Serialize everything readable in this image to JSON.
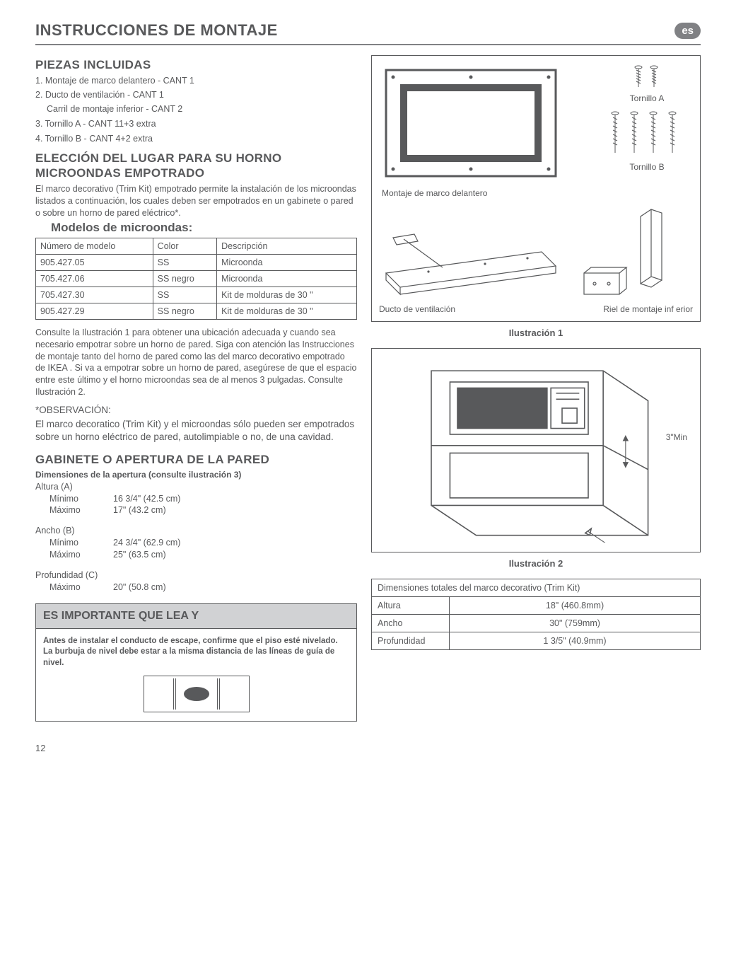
{
  "header": {
    "title": "INSTRUCCIONES DE MONTAJE",
    "lang_badge": "es"
  },
  "piezas": {
    "heading": "PIEZAS INCLUIDAS",
    "items": [
      "1. Montaje de marco delantero - CANT 1",
      "2. Ducto de ventilación - CANT 1",
      "Carril de montaje inferior - CANT 2",
      "3. Tornillo A - CANT 11+3 extra",
      "4. Tornillo B - CANT 4+2 extra"
    ]
  },
  "eleccion": {
    "heading": "ELECCIÓN DEL LUGAR PARA SU HORNO MICROONDAS EMPOTRADO",
    "para": "El marco decorativo (Trim Kit) empotrado permite la instalación de los microondas listados a continuación, los cuales deben ser empotrados en un gabinete o pared o sobre un horno de pared eléctrico*."
  },
  "modelos": {
    "heading": "Modelos de microondas:",
    "columns": [
      "Número de modelo",
      "Color",
      "Descripción"
    ],
    "rows": [
      [
        "905.427.05",
        "SS",
        "Microonda"
      ],
      [
        "705.427.06",
        "SS negro",
        "Microonda"
      ],
      [
        "705.427.30",
        "SS",
        "Kit de molduras de 30 \""
      ],
      [
        "905.427.29",
        "SS negro",
        "Kit de molduras de 30 \""
      ]
    ]
  },
  "consulte_para": "Consulte la Ilustración 1 para obtener una ubicación adecuada y cuando sea necesario empotrar sobre un horno de pared. Siga con atención las Instrucciones de montaje tanto del horno de pared como las del marco decorativo empotrado de IKEA . Si va a empotrar sobre un horno de pared, asegúrese de que el espacio entre este último y el horno microondas sea de al menos 3 pulgadas. Consulte Ilustración 2.",
  "observacion": {
    "label": " *OBSERVACIÓN:",
    "text": "El marco decoratico (Trim Kit) y el microondas sólo pueden ser empotrados sobre un horno eléctrico de pared, autolimpiable o no, de una cavidad."
  },
  "gabinete": {
    "heading": "GABINETE O APERTURA DE LA PARED",
    "subheading": "Dimensiones de la apertura (consulte ilustración 3)",
    "groups": [
      {
        "label": "Altura (A)",
        "rows": [
          {
            "k": "Mínimo",
            "v": "16 3/4\" (42.5 cm)"
          },
          {
            "k": "Máximo",
            "v": "17\" (43.2 cm)"
          }
        ]
      },
      {
        "label": "Ancho (B)",
        "rows": [
          {
            "k": "Mínimo",
            "v": "24 3/4\" (62.9 cm)"
          },
          {
            "k": "Máximo",
            "v": "25\" (63.5 cm)"
          }
        ]
      },
      {
        "label": "Profundidad (C)",
        "rows": [
          {
            "k": "Máximo",
            "v": "20\" (50.8 cm)"
          }
        ]
      }
    ]
  },
  "important": {
    "title": "ES IMPORTANTE QUE LEA Y",
    "body": "Antes de instalar el conducto de escape, confirme que el piso esté nivelado. La burbuja de nivel debe estar a la misma distancia de las líneas de guía de nivel."
  },
  "fig1": {
    "screw_a_label": "Tornillo A",
    "screw_b_label": "Tornillo B",
    "frame_label": "Montaje de marco delantero",
    "duct_label": "Ducto de ventilación",
    "rail_label": "Riel de montaje inf erior",
    "caption": "Ilustración 1",
    "colors": {
      "stroke": "#58595b",
      "fill_none": "none"
    }
  },
  "fig2": {
    "min_label": "3\"Min",
    "caption": "Ilustración 2"
  },
  "trimkit_table": {
    "header": "Dimensiones totales del marco decorativo (Trim Kit)",
    "rows": [
      [
        "Altura",
        "18\" (460.8mm)"
      ],
      [
        "Ancho",
        "30\" (759mm)"
      ],
      [
        "Profundidad",
        "1 3/5\" (40.9mm)"
      ]
    ]
  },
  "page_number": "12"
}
